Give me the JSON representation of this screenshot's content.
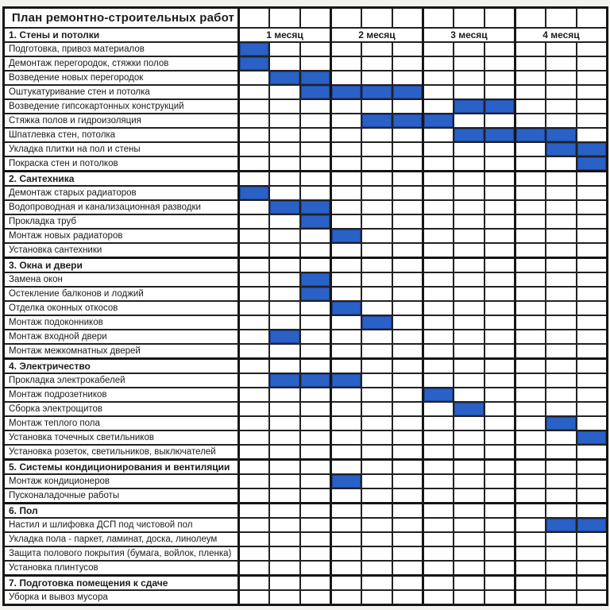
{
  "chart_data": {
    "type": "table",
    "subtype": "gantt",
    "title": "План ремонтно-строительных работ",
    "bar_color": "#2a61c7",
    "grid_color": "#222222",
    "background_color": "#ffffff",
    "x_axis": {
      "months": [
        "1 месяц",
        "2 месяц",
        "3 месяц",
        "4 месяц"
      ],
      "columns_per_month": 3,
      "total_columns": 12
    },
    "sections": [
      {
        "label": "1. Стены и потолки",
        "tasks": [
          {
            "label": "Подготовка, привоз материалов",
            "bar": [
              1,
              1
            ]
          },
          {
            "label": "Демонтаж перегородок, стяжки полов",
            "bar": [
              1,
              1
            ]
          },
          {
            "label": "Возведение новых перегородок",
            "bar": [
              2,
              3
            ]
          },
          {
            "label": "Оштукатуривание стен и потолка",
            "bar": [
              3,
              6
            ]
          },
          {
            "label": "Возведение гипсокартонных конструкций",
            "bar": [
              8,
              9
            ]
          },
          {
            "label": "Стяжка полов и гидроизоляция",
            "bar": [
              5,
              7
            ]
          },
          {
            "label": "Шпатлевка стен, потолка",
            "bar": [
              8,
              11
            ]
          },
          {
            "label": "Укладка плитки на пол и стены",
            "bar": [
              11,
              12
            ]
          },
          {
            "label": "Покраска стен и потолков",
            "bar": [
              12,
              12
            ]
          }
        ]
      },
      {
        "label": "2. Сантехника",
        "tasks": [
          {
            "label": "Демонтаж старых радиаторов",
            "bar": [
              1,
              1
            ]
          },
          {
            "label": "Водопроводная и канализационная разводки",
            "bar": [
              2,
              3
            ]
          },
          {
            "label": "Прокладка труб",
            "bar": [
              3,
              3
            ]
          },
          {
            "label": "Монтаж новых радиаторов",
            "bar": [
              4,
              4
            ]
          },
          {
            "label": "Установка сантехники",
            "bar": null
          }
        ]
      },
      {
        "label": "3. Окна и двери",
        "tasks": [
          {
            "label": "Замена окон",
            "bar": [
              3,
              3
            ]
          },
          {
            "label": "Остекление балконов и лоджий",
            "bar": [
              3,
              3
            ]
          },
          {
            "label": "Отделка оконных откосов",
            "bar": [
              4,
              4
            ]
          },
          {
            "label": "Монтаж подоконников",
            "bar": [
              5,
              5
            ]
          },
          {
            "label": "Монтаж входной двери",
            "bar": [
              2,
              2
            ]
          },
          {
            "label": "Монтаж межкомнатных дверей",
            "bar": null
          }
        ]
      },
      {
        "label": "4. Электричество",
        "tasks": [
          {
            "label": "Прокладка электрокабелей",
            "bar": [
              2,
              4
            ]
          },
          {
            "label": "Монтаж подрозетников",
            "bar": [
              7,
              7
            ]
          },
          {
            "label": "Сборка электрощитов",
            "bar": [
              8,
              8
            ]
          },
          {
            "label": "Монтаж теплого пола",
            "bar": [
              11,
              11
            ]
          },
          {
            "label": "Установка точечных светильников",
            "bar": [
              12,
              12
            ]
          },
          {
            "label": "Установка розеток, светильников, выключателей",
            "bar": null
          }
        ]
      },
      {
        "label": "5. Системы кондиционирования и вентиляции",
        "tasks": [
          {
            "label": "Монтаж кондиционеров",
            "bar": [
              4,
              4
            ]
          },
          {
            "label": "Пусконаладочные работы",
            "bar": null
          }
        ]
      },
      {
        "label": "6. Пол",
        "tasks": [
          {
            "label": "Настил и шлифовка ДСП под чистовой пол",
            "bar": [
              11,
              12
            ]
          },
          {
            "label": "Укладка пола - паркет, ламинат, доска, линолеум",
            "bar": null
          },
          {
            "label": "Защита полового покрытия (бумага, войлок, пленка)",
            "bar": null
          },
          {
            "label": "Установка плинтусов",
            "bar": null
          }
        ]
      },
      {
        "label": "7. Подготовка помещения к сдаче",
        "tasks": [
          {
            "label": "Уборка и вывоз мусора",
            "bar": null
          }
        ]
      }
    ]
  }
}
